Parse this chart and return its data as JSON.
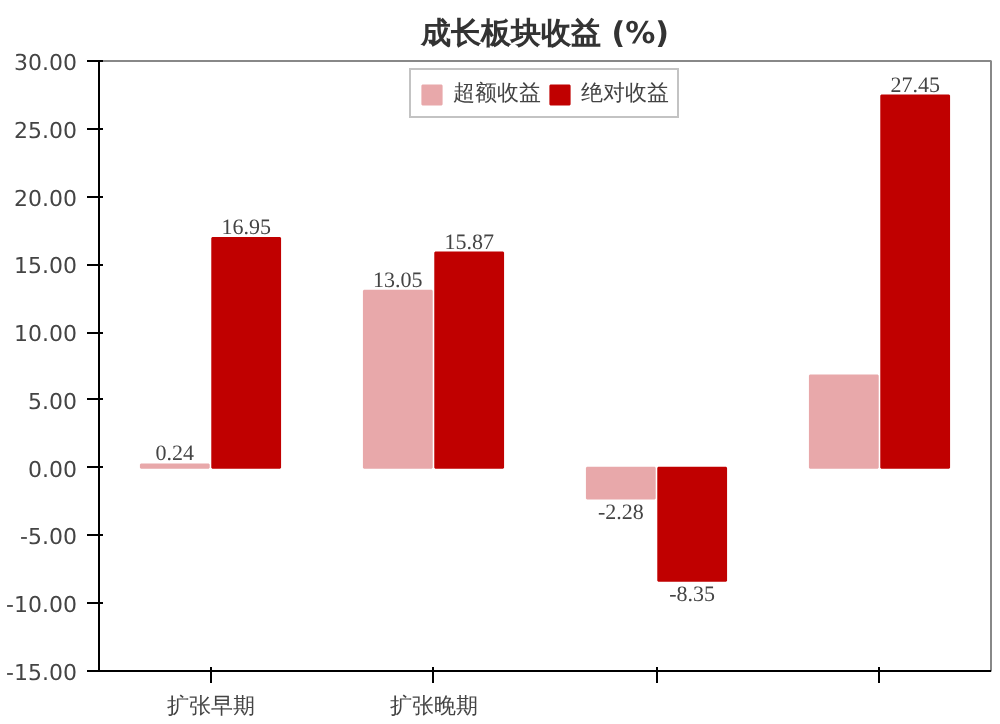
{
  "chart_data": {
    "type": "bar",
    "title": "成长板块收益 (%)",
    "categories": [
      "扩张早期",
      "扩张晚期",
      null,
      null
    ],
    "series": [
      {
        "name": "超额收益",
        "color": "#e8a8aa",
        "values": [
          0.24,
          13.05,
          -2.28,
          6.8
        ],
        "value_labels": [
          "0.24",
          "13.05",
          "-2.28",
          null
        ]
      },
      {
        "name": "绝对收益",
        "color": "#c00000",
        "values": [
          16.95,
          15.87,
          -8.35,
          27.45
        ],
        "value_labels": [
          "16.95",
          "15.87",
          "-8.35",
          "27.45"
        ]
      }
    ],
    "ylim": [
      -15,
      30
    ],
    "yticks": [
      {
        "value": -15,
        "label": "-15.00"
      },
      {
        "value": -10,
        "label": "-10.00"
      },
      {
        "value": -5,
        "label": "-5.00"
      },
      {
        "value": 0,
        "label": "0.00"
      },
      {
        "value": 5,
        "label": "5.00"
      },
      {
        "value": 10,
        "label": "10.00"
      },
      {
        "value": 15,
        "label": "15.00"
      },
      {
        "value": 20,
        "label": "20.00"
      },
      {
        "value": 25,
        "label": "25.00"
      },
      {
        "value": 30,
        "label": "30.00"
      }
    ],
    "grid": false,
    "legend": "top"
  }
}
